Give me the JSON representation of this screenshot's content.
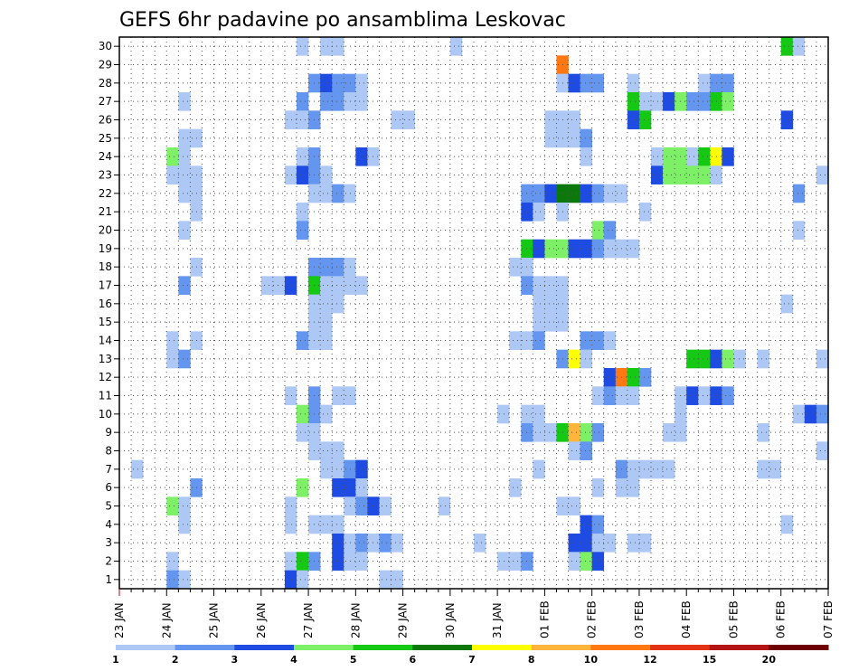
{
  "chart_data": {
    "type": "heatmap",
    "title": "GEFS 6hr padavine po ansamblima Leskovac",
    "x_tick_labels": [
      "23 JAN",
      "24 JAN",
      "25 JAN",
      "26 JAN",
      "27 JAN",
      "28 JAN",
      "29 JAN",
      "30 JAN",
      "31 JAN",
      "01 FEB",
      "02 FEB",
      "03 FEB",
      "04 FEB",
      "05 FEB",
      "06 FEB",
      "07 FEB"
    ],
    "y_tick_labels": [
      "1",
      "2",
      "3",
      "4",
      "5",
      "6",
      "7",
      "8",
      "9",
      "10",
      "11",
      "12",
      "13",
      "14",
      "15",
      "16",
      "17",
      "18",
      "19",
      "20",
      "21",
      "22",
      "23",
      "24",
      "25",
      "26",
      "27",
      "28",
      "29",
      "30"
    ],
    "xlim": [
      0,
      60
    ],
    "ylim": [
      0.5,
      30.5
    ],
    "x_unit": "6-hour step from 23 JAN 00Z",
    "grid": true,
    "colorbar": {
      "labels": [
        "1",
        "2",
        "3",
        "4",
        "5",
        "6",
        "7",
        "8",
        "10",
        "12",
        "15",
        "20"
      ],
      "colors": [
        "#aec8f5",
        "#6496f0",
        "#1e4be1",
        "#7ef068",
        "#14c814",
        "#0a780a",
        "#ffff00",
        "#ffb43c",
        "#ff7814",
        "#e63214",
        "#b41414",
        "#6e0000"
      ]
    },
    "cells": [
      [
        30,
        15.5,
        1
      ],
      [
        30,
        17.5,
        1
      ],
      [
        30,
        18.5,
        1
      ],
      [
        30,
        28.5,
        1
      ],
      [
        30,
        56.5,
        5
      ],
      [
        30,
        57.5,
        1
      ],
      [
        29,
        37.5,
        9
      ],
      [
        28,
        16.5,
        2
      ],
      [
        28,
        17.5,
        3
      ],
      [
        28,
        18.5,
        2
      ],
      [
        28,
        19.5,
        2
      ],
      [
        28,
        20.5,
        1
      ],
      [
        28,
        37.5,
        1
      ],
      [
        28,
        38.5,
        3
      ],
      [
        28,
        39.5,
        2
      ],
      [
        28,
        40.5,
        2
      ],
      [
        28,
        43.5,
        1
      ],
      [
        28,
        49.5,
        1
      ],
      [
        28,
        50.5,
        2
      ],
      [
        28,
        51.5,
        2
      ],
      [
        27,
        5.5,
        1
      ],
      [
        27,
        15.5,
        2
      ],
      [
        27,
        17.5,
        2
      ],
      [
        27,
        18.5,
        2
      ],
      [
        27,
        19.5,
        1
      ],
      [
        27,
        20.5,
        1
      ],
      [
        27,
        43.5,
        5
      ],
      [
        27,
        44.5,
        1
      ],
      [
        27,
        45.5,
        1
      ],
      [
        27,
        46.5,
        3
      ],
      [
        27,
        47.5,
        4
      ],
      [
        27,
        48.5,
        2
      ],
      [
        27,
        49.5,
        2
      ],
      [
        27,
        50.5,
        5
      ],
      [
        27,
        51.5,
        4
      ],
      [
        26,
        14.5,
        1
      ],
      [
        26,
        15.5,
        1
      ],
      [
        26,
        16.5,
        2
      ],
      [
        26,
        23.5,
        1
      ],
      [
        26,
        24.5,
        1
      ],
      [
        26,
        36.5,
        1
      ],
      [
        26,
        37.5,
        1
      ],
      [
        26,
        38.5,
        1
      ],
      [
        26,
        43.5,
        3
      ],
      [
        26,
        44.5,
        5
      ],
      [
        26,
        56.5,
        3
      ],
      [
        25,
        5.5,
        1
      ],
      [
        25,
        6.5,
        1
      ],
      [
        25,
        36.5,
        1
      ],
      [
        25,
        37.5,
        1
      ],
      [
        25,
        38.5,
        1
      ],
      [
        25,
        39.5,
        2
      ],
      [
        24,
        4.5,
        4
      ],
      [
        24,
        5.5,
        1
      ],
      [
        24,
        15.5,
        1
      ],
      [
        24,
        16.5,
        2
      ],
      [
        24,
        20.5,
        3
      ],
      [
        24,
        21.5,
        1
      ],
      [
        24,
        39.5,
        1
      ],
      [
        24,
        45.5,
        1
      ],
      [
        24,
        46.5,
        4
      ],
      [
        24,
        47.5,
        4
      ],
      [
        24,
        48.5,
        1
      ],
      [
        24,
        49.5,
        5
      ],
      [
        24,
        50.5,
        7
      ],
      [
        24,
        51.5,
        3
      ],
      [
        23,
        4.5,
        1
      ],
      [
        23,
        5.5,
        1
      ],
      [
        23,
        6.5,
        1
      ],
      [
        23,
        14.5,
        1
      ],
      [
        23,
        15.5,
        3
      ],
      [
        23,
        16.5,
        2
      ],
      [
        23,
        17.5,
        1
      ],
      [
        23,
        45.5,
        3
      ],
      [
        23,
        46.5,
        4
      ],
      [
        23,
        47.5,
        4
      ],
      [
        23,
        48.5,
        4
      ],
      [
        23,
        49.5,
        4
      ],
      [
        23,
        50.5,
        1
      ],
      [
        23,
        59.5,
        1
      ],
      [
        22,
        5.5,
        1
      ],
      [
        22,
        6.5,
        1
      ],
      [
        22,
        16.5,
        1
      ],
      [
        22,
        17.5,
        1
      ],
      [
        22,
        18.5,
        2
      ],
      [
        22,
        19.5,
        1
      ],
      [
        22,
        34.5,
        2
      ],
      [
        22,
        35.5,
        2
      ],
      [
        22,
        36.5,
        3
      ],
      [
        22,
        37.5,
        6
      ],
      [
        22,
        38.5,
        6
      ],
      [
        22,
        39.5,
        3
      ],
      [
        22,
        40.5,
        2
      ],
      [
        22,
        41.5,
        1
      ],
      [
        22,
        42.5,
        1
      ],
      [
        22,
        57.5,
        2
      ],
      [
        21,
        6.5,
        1
      ],
      [
        21,
        15.5,
        1
      ],
      [
        21,
        34.5,
        3
      ],
      [
        21,
        35.5,
        1
      ],
      [
        21,
        37.5,
        1
      ],
      [
        21,
        44.5,
        1
      ],
      [
        20,
        5.5,
        1
      ],
      [
        20,
        15.5,
        2
      ],
      [
        20,
        40.5,
        4
      ],
      [
        20,
        41.5,
        2
      ],
      [
        20,
        57.5,
        1
      ],
      [
        19,
        34.5,
        5
      ],
      [
        19,
        35.5,
        3
      ],
      [
        19,
        36.5,
        4
      ],
      [
        19,
        37.5,
        4
      ],
      [
        19,
        38.5,
        3
      ],
      [
        19,
        39.5,
        3
      ],
      [
        19,
        40.5,
        2
      ],
      [
        19,
        41.5,
        1
      ],
      [
        19,
        42.5,
        1
      ],
      [
        19,
        43.5,
        1
      ],
      [
        18,
        6.5,
        1
      ],
      [
        18,
        16.5,
        2
      ],
      [
        18,
        17.5,
        2
      ],
      [
        18,
        18.5,
        2
      ],
      [
        18,
        19.5,
        1
      ],
      [
        18,
        33.5,
        1
      ],
      [
        18,
        34.5,
        1
      ],
      [
        17,
        5.5,
        2
      ],
      [
        17,
        12.5,
        1
      ],
      [
        17,
        13.5,
        1
      ],
      [
        17,
        14.5,
        3
      ],
      [
        17,
        16.5,
        5
      ],
      [
        17,
        17.5,
        1
      ],
      [
        17,
        18.5,
        1
      ],
      [
        17,
        19.5,
        1
      ],
      [
        17,
        20.5,
        1
      ],
      [
        17,
        34.5,
        2
      ],
      [
        17,
        35.5,
        1
      ],
      [
        17,
        36.5,
        1
      ],
      [
        17,
        37.5,
        1
      ],
      [
        16,
        16.5,
        1
      ],
      [
        16,
        17.5,
        1
      ],
      [
        16,
        18.5,
        1
      ],
      [
        16,
        35.5,
        1
      ],
      [
        16,
        36.5,
        1
      ],
      [
        16,
        37.5,
        1
      ],
      [
        16,
        56.5,
        1
      ],
      [
        15,
        16.5,
        1
      ],
      [
        15,
        17.5,
        1
      ],
      [
        15,
        35.5,
        1
      ],
      [
        15,
        36.5,
        1
      ],
      [
        15,
        37.5,
        1
      ],
      [
        14,
        4.5,
        1
      ],
      [
        14,
        6.5,
        1
      ],
      [
        14,
        15.5,
        2
      ],
      [
        14,
        16.5,
        1
      ],
      [
        14,
        17.5,
        1
      ],
      [
        14,
        33.5,
        1
      ],
      [
        14,
        34.5,
        1
      ],
      [
        14,
        35.5,
        2
      ],
      [
        14,
        39.5,
        2
      ],
      [
        14,
        40.5,
        2
      ],
      [
        14,
        41.5,
        1
      ],
      [
        13,
        4.5,
        1
      ],
      [
        13,
        5.5,
        2
      ],
      [
        13,
        37.5,
        2
      ],
      [
        13,
        38.5,
        7
      ],
      [
        13,
        39.5,
        1
      ],
      [
        13,
        48.5,
        5
      ],
      [
        13,
        49.5,
        5
      ],
      [
        13,
        50.5,
        3
      ],
      [
        13,
        51.5,
        4
      ],
      [
        13,
        52.5,
        1
      ],
      [
        13,
        54.5,
        1
      ],
      [
        13,
        59.5,
        1
      ],
      [
        12,
        41.5,
        3
      ],
      [
        12,
        42.5,
        9
      ],
      [
        12,
        43.5,
        5
      ],
      [
        12,
        44.5,
        2
      ],
      [
        11,
        14.5,
        1
      ],
      [
        11,
        16.5,
        2
      ],
      [
        11,
        18.5,
        1
      ],
      [
        11,
        19.5,
        1
      ],
      [
        11,
        40.5,
        1
      ],
      [
        11,
        41.5,
        2
      ],
      [
        11,
        42.5,
        1
      ],
      [
        11,
        43.5,
        1
      ],
      [
        11,
        47.5,
        1
      ],
      [
        11,
        48.5,
        3
      ],
      [
        11,
        49.5,
        1
      ],
      [
        11,
        50.5,
        3
      ],
      [
        11,
        51.5,
        2
      ],
      [
        10,
        15.5,
        4
      ],
      [
        10,
        16.5,
        2
      ],
      [
        10,
        17.5,
        1
      ],
      [
        10,
        32.5,
        1
      ],
      [
        10,
        34.5,
        1
      ],
      [
        10,
        35.5,
        1
      ],
      [
        10,
        47.5,
        1
      ],
      [
        10,
        57.5,
        1
      ],
      [
        10,
        58.5,
        3
      ],
      [
        10,
        59.5,
        2
      ],
      [
        9,
        15.5,
        1
      ],
      [
        9,
        16.5,
        1
      ],
      [
        9,
        34.5,
        2
      ],
      [
        9,
        35.5,
        1
      ],
      [
        9,
        36.5,
        1
      ],
      [
        9,
        37.5,
        5
      ],
      [
        9,
        38.5,
        8
      ],
      [
        9,
        39.5,
        4
      ],
      [
        9,
        40.5,
        2
      ],
      [
        9,
        46.5,
        1
      ],
      [
        9,
        47.5,
        1
      ],
      [
        9,
        54.5,
        1
      ],
      [
        8,
        16.5,
        1
      ],
      [
        8,
        17.5,
        1
      ],
      [
        8,
        18.5,
        1
      ],
      [
        8,
        38.5,
        1
      ],
      [
        8,
        39.5,
        2
      ],
      [
        8,
        59.5,
        1
      ],
      [
        7,
        1.5,
        1
      ],
      [
        7,
        17.5,
        1
      ],
      [
        7,
        18.5,
        1
      ],
      [
        7,
        19.5,
        2
      ],
      [
        7,
        20.5,
        3
      ],
      [
        7,
        35.5,
        1
      ],
      [
        7,
        42.5,
        2
      ],
      [
        7,
        43.5,
        1
      ],
      [
        7,
        44.5,
        1
      ],
      [
        7,
        45.5,
        1
      ],
      [
        7,
        46.5,
        1
      ],
      [
        7,
        54.5,
        1
      ],
      [
        7,
        55.5,
        1
      ],
      [
        6,
        6.5,
        2
      ],
      [
        6,
        15.5,
        4
      ],
      [
        6,
        18.5,
        3
      ],
      [
        6,
        19.5,
        3
      ],
      [
        6,
        20.5,
        1
      ],
      [
        6,
        33.5,
        1
      ],
      [
        6,
        40.5,
        1
      ],
      [
        6,
        42.5,
        1
      ],
      [
        6,
        43.5,
        1
      ],
      [
        5,
        4.5,
        4
      ],
      [
        5,
        5.5,
        1
      ],
      [
        5,
        14.5,
        1
      ],
      [
        5,
        19.5,
        1
      ],
      [
        5,
        20.5,
        2
      ],
      [
        5,
        21.5,
        3
      ],
      [
        5,
        22.5,
        1
      ],
      [
        5,
        27.5,
        1
      ],
      [
        5,
        37.5,
        1
      ],
      [
        5,
        38.5,
        1
      ],
      [
        4,
        5.5,
        1
      ],
      [
        4,
        14.5,
        1
      ],
      [
        4,
        16.5,
        1
      ],
      [
        4,
        17.5,
        1
      ],
      [
        4,
        18.5,
        1
      ],
      [
        4,
        39.5,
        3
      ],
      [
        4,
        40.5,
        2
      ],
      [
        4,
        56.5,
        1
      ],
      [
        3,
        18.5,
        3
      ],
      [
        3,
        19.5,
        1
      ],
      [
        3,
        20.5,
        2
      ],
      [
        3,
        21.5,
        1
      ],
      [
        3,
        22.5,
        2
      ],
      [
        3,
        23.5,
        1
      ],
      [
        3,
        30.5,
        1
      ],
      [
        3,
        38.5,
        3
      ],
      [
        3,
        39.5,
        3
      ],
      [
        3,
        40.5,
        1
      ],
      [
        3,
        41.5,
        1
      ],
      [
        3,
        43.5,
        1
      ],
      [
        3,
        44.5,
        1
      ],
      [
        2,
        4.5,
        1
      ],
      [
        2,
        14.5,
        1
      ],
      [
        2,
        15.5,
        5
      ],
      [
        2,
        16.5,
        2
      ],
      [
        2,
        18.5,
        3
      ],
      [
        2,
        19.5,
        1
      ],
      [
        2,
        20.5,
        1
      ],
      [
        2,
        32.5,
        1
      ],
      [
        2,
        33.5,
        1
      ],
      [
        2,
        34.5,
        2
      ],
      [
        2,
        38.5,
        1
      ],
      [
        2,
        39.5,
        4
      ],
      [
        2,
        40.5,
        3
      ],
      [
        1,
        4.5,
        2
      ],
      [
        1,
        5.5,
        1
      ],
      [
        1,
        14.5,
        3
      ],
      [
        1,
        15.5,
        1
      ],
      [
        1,
        22.5,
        1
      ],
      [
        1,
        23.5,
        1
      ]
    ]
  }
}
